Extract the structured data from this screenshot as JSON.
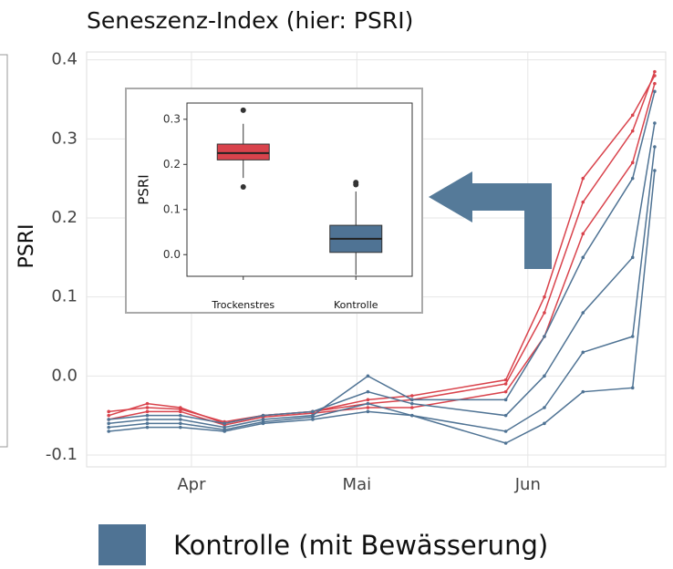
{
  "chart_data": [
    {
      "type": "line",
      "title": "Seneszenz-Index (hier: PSRI)",
      "y_label": "PSRI",
      "x": [
        76,
        83,
        89,
        97,
        104,
        113,
        123,
        131,
        148,
        155,
        162,
        171,
        175
      ],
      "xlim": [
        72,
        177
      ],
      "xticks": [
        {
          "value": 91,
          "label": "Apr"
        },
        {
          "value": 121,
          "label": "Mai"
        },
        {
          "value": 152,
          "label": "Jun"
        }
      ],
      "ylim": [
        -0.115,
        0.41
      ],
      "yticks": [
        -0.1,
        {
          "value": 0,
          "label": "0.0"
        },
        0.1,
        0.2,
        0.3,
        0.4
      ],
      "grid": true,
      "series": [
        {
          "color": "#d9434c",
          "values": [
            -0.05,
            -0.035,
            -0.04,
            -0.06,
            -0.05,
            -0.045,
            -0.035,
            -0.03,
            -0.01,
            0.08,
            0.22,
            0.31,
            0.385
          ]
        },
        {
          "color": "#d9434c",
          "values": [
            -0.055,
            -0.045,
            -0.045,
            -0.062,
            -0.052,
            -0.047,
            -0.04,
            -0.04,
            -0.02,
            0.05,
            0.18,
            0.27,
            0.37
          ]
        },
        {
          "color": "#d9434c",
          "values": [
            -0.045,
            -0.04,
            -0.042,
            -0.058,
            -0.05,
            -0.045,
            -0.03,
            -0.025,
            -0.005,
            0.1,
            0.25,
            0.33,
            0.38
          ]
        },
        {
          "color": "#4f7394",
          "values": [
            -0.07,
            -0.065,
            -0.065,
            -0.07,
            -0.06,
            -0.055,
            -0.045,
            -0.05,
            -0.085,
            -0.06,
            -0.02,
            -0.015,
            0.26
          ]
        },
        {
          "color": "#4f7394",
          "values": [
            -0.055,
            -0.05,
            -0.05,
            -0.06,
            -0.05,
            -0.045,
            -0.02,
            -0.035,
            -0.05,
            0.0,
            0.08,
            0.15,
            0.32
          ]
        },
        {
          "color": "#4f7394",
          "values": [
            -0.06,
            -0.055,
            -0.055,
            -0.065,
            -0.055,
            -0.05,
            0.0,
            -0.03,
            -0.03,
            0.05,
            0.15,
            0.25,
            0.36
          ]
        },
        {
          "color": "#4f7394",
          "values": [
            -0.065,
            -0.06,
            -0.06,
            -0.068,
            -0.058,
            -0.052,
            -0.035,
            -0.05,
            -0.07,
            -0.04,
            0.03,
            0.05,
            0.29
          ]
        }
      ],
      "legend": {
        "label": "Kontrolle (mit Bewässerung)",
        "color": "#4f7394"
      }
    },
    {
      "type": "box",
      "y_label": "PSRI",
      "categories": [
        "Trockenstres",
        "Kontrolle"
      ],
      "ylim": [
        -0.048,
        0.336
      ],
      "yticks": [
        {
          "value": 0,
          "label": "0.0"
        },
        0.1,
        0.2,
        0.3
      ],
      "boxes": [
        {
          "color": "#d9434c",
          "min": 0.17,
          "q1": 0.21,
          "median": 0.225,
          "q3": 0.245,
          "max": 0.29,
          "outliers": [
            0.32,
            0.15
          ]
        },
        {
          "color": "#4f7394",
          "min": -0.045,
          "q1": 0.005,
          "median": 0.035,
          "q3": 0.065,
          "max": 0.14,
          "outliers": [
            0.16,
            0.155
          ]
        }
      ]
    }
  ]
}
